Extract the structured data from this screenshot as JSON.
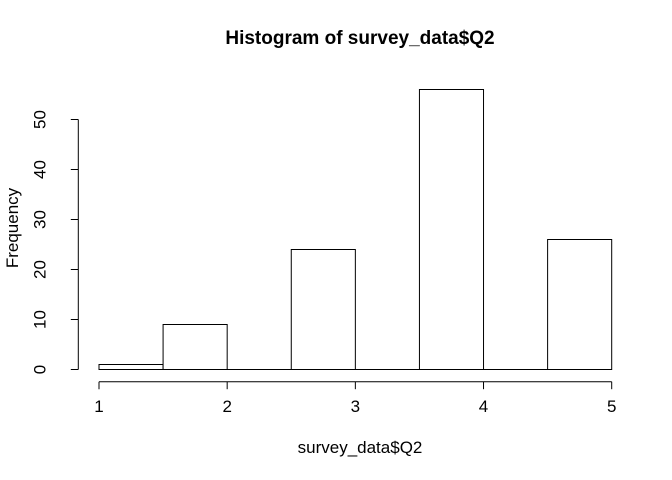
{
  "figure": {
    "background": "#ffffff",
    "kind": "R base-graphics histogram plot"
  },
  "chart_data": {
    "type": "bar",
    "subtype": "histogram",
    "title": "Histogram of survey_data$Q2",
    "xlabel": "survey_data$Q2",
    "ylabel": "Frequency",
    "bins": [
      {
        "from": 1.0,
        "to": 1.5,
        "count": 1
      },
      {
        "from": 1.5,
        "to": 2.0,
        "count": 9
      },
      {
        "from": 2.0,
        "to": 2.5,
        "count": 0
      },
      {
        "from": 2.5,
        "to": 3.0,
        "count": 24
      },
      {
        "from": 3.0,
        "to": 3.5,
        "count": 0
      },
      {
        "from": 3.5,
        "to": 4.0,
        "count": 56
      },
      {
        "from": 4.0,
        "to": 4.5,
        "count": 0
      },
      {
        "from": 4.5,
        "to": 5.0,
        "count": 26
      }
    ],
    "bin_width": 0.5,
    "x_ticks": [
      1,
      2,
      3,
      4,
      5
    ],
    "y_ticks": [
      0,
      10,
      20,
      30,
      40,
      50
    ],
    "xlim": [
      1,
      5
    ],
    "ylim": [
      0,
      56
    ],
    "grid": false,
    "legend": false,
    "colors": {
      "bar_fill": "#ffffff",
      "bar_border": "#000000",
      "axis": "#000000",
      "text": "#000000",
      "background": "#ffffff"
    }
  }
}
